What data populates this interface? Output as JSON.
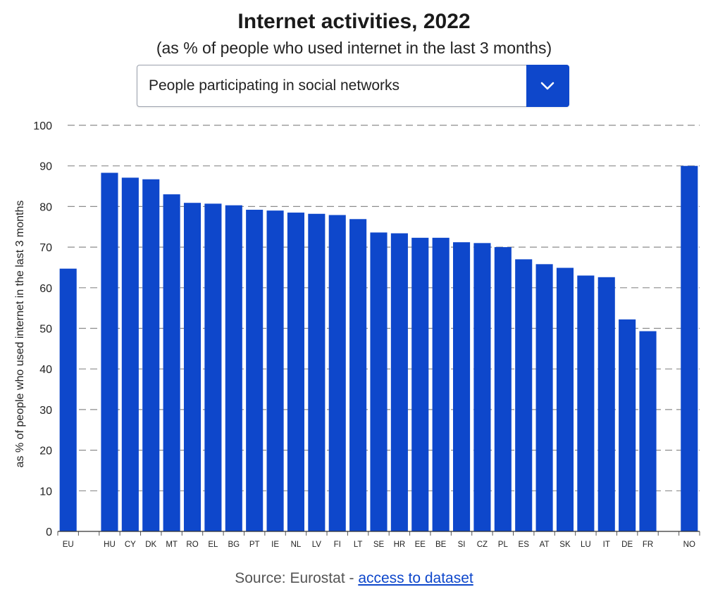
{
  "header": {
    "title": "Internet activities, 2022",
    "subtitle": "(as % of people who used internet in the last 3 months)"
  },
  "dropdown": {
    "selected": "People participating in social networks",
    "icon": "chevron-down-icon"
  },
  "source": {
    "prefix": "Source: Eurostat - ",
    "link_text": "access to dataset"
  },
  "colors": {
    "bar": "#0e47cb",
    "grid": "#8c8c8c"
  },
  "chart_data": {
    "type": "bar",
    "ylabel": "as % of people who used internet in the last 3 months",
    "xlabel": "",
    "ylim": [
      0,
      100
    ],
    "yticks": [
      0,
      10,
      20,
      30,
      40,
      50,
      60,
      70,
      80,
      90,
      100
    ],
    "grid": true,
    "categories": [
      "EU",
      "",
      "HU",
      "CY",
      "DK",
      "MT",
      "RO",
      "EL",
      "BG",
      "PT",
      "IE",
      "NL",
      "LV",
      "FI",
      "LT",
      "SE",
      "HR",
      "EE",
      "BE",
      "SI",
      "CZ",
      "PL",
      "ES",
      "AT",
      "SK",
      "LU",
      "IT",
      "DE",
      "FR",
      "",
      "NO"
    ],
    "values": [
      64.7,
      null,
      88.3,
      87.1,
      86.7,
      83.0,
      80.9,
      80.7,
      80.3,
      79.2,
      79.0,
      78.5,
      78.2,
      77.9,
      76.9,
      73.6,
      73.4,
      72.3,
      72.3,
      71.2,
      71.0,
      70.0,
      67.0,
      65.8,
      64.9,
      63.0,
      62.6,
      52.2,
      49.3,
      null,
      90.0
    ]
  }
}
